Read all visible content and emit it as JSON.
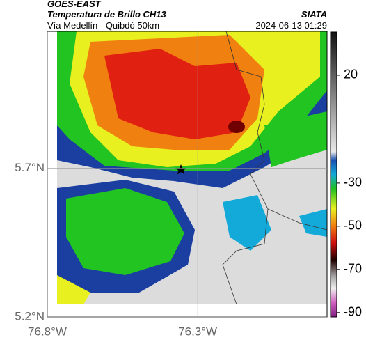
{
  "header": {
    "title": "GOES-EAST",
    "subtitle": "Temperatura de Brillo CH13",
    "region": "Vía Medellín - Quibdó 50km",
    "source": "SIATA",
    "datetime": "2024-06-13 01:29"
  },
  "map": {
    "xlim": [
      -76.8,
      -75.87
    ],
    "ylim": [
      5.2,
      6.16
    ],
    "xticks": [
      {
        "value": -76.8,
        "label": "76.8°W"
      },
      {
        "value": -76.3,
        "label": "76.3°W"
      }
    ],
    "yticks": [
      {
        "value": 5.7,
        "label": "5.7°N"
      },
      {
        "value": 5.2,
        "label": "5.2°N"
      }
    ]
  },
  "colorbar": {
    "lim": [
      -92,
      40
    ],
    "ticks": [
      20,
      -30,
      -50,
      -70,
      -90
    ]
  }
}
